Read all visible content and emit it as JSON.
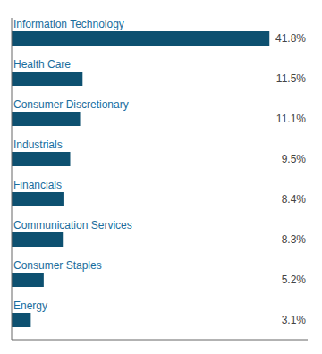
{
  "chart_data": {
    "type": "bar",
    "orientation": "horizontal",
    "categories": [
      "Information Technology",
      "Health Care",
      "Consumer Discretionary",
      "Industrials",
      "Financials",
      "Communication Services",
      "Consumer Staples",
      "Energy"
    ],
    "values": [
      41.8,
      11.5,
      11.1,
      9.5,
      8.4,
      8.3,
      5.2,
      3.1
    ],
    "value_labels": [
      "41.8%",
      "11.5%",
      "11.1%",
      "9.5%",
      "8.4%",
      "8.3%",
      "5.2%",
      "3.1%"
    ],
    "data_labels": true,
    "color": "#0d5070",
    "xlim": [
      0,
      48
    ],
    "xticks": [],
    "tick_labels": false,
    "grid": false
  }
}
